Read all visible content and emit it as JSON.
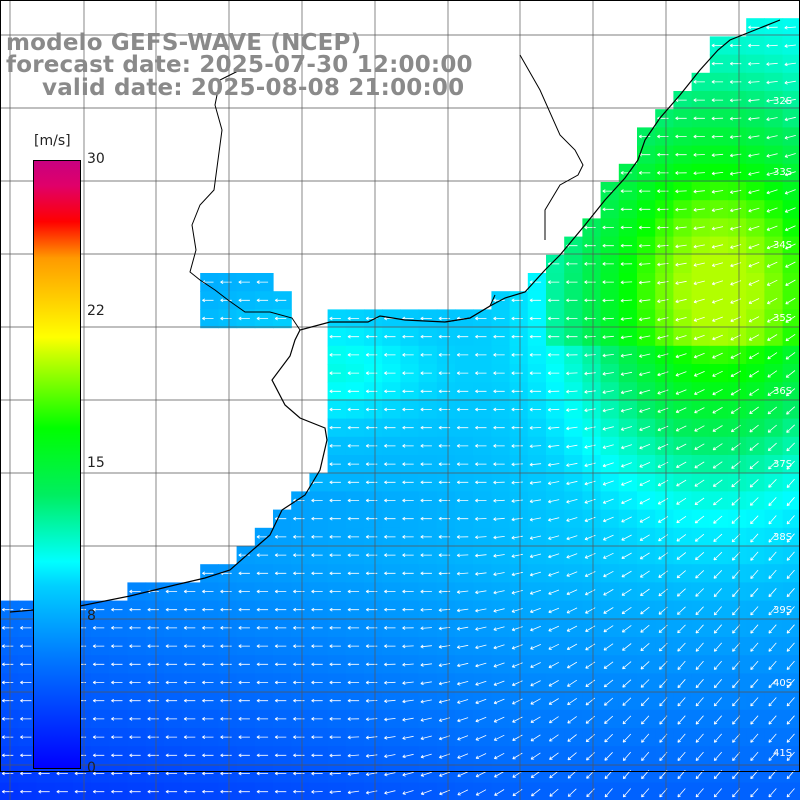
{
  "header": {
    "line1": "modelo GEFS-WAVE (NCEP)",
    "line2": "forecast date: 2025-07-30 12:00:00",
    "line3": "valid date: 2025-08-08 21:00:00"
  },
  "colorbar": {
    "unit": "[m/s]",
    "ticks": [
      {
        "label": "30",
        "value": 30
      },
      {
        "label": "22",
        "value": 22
      },
      {
        "label": "15",
        "value": 15
      },
      {
        "label": "8",
        "value": 8
      },
      {
        "label": "0",
        "value": 0
      }
    ],
    "range": [
      0,
      30
    ]
  },
  "map": {
    "latitude_labels": [
      "32S",
      "33S",
      "34S",
      "35S",
      "36S",
      "37S",
      "38S",
      "39S",
      "40S",
      "41S"
    ],
    "variable": "wind speed with direction arrows",
    "land_color": "#ffffff",
    "grid_color": "#555555",
    "coast_color": "#000000"
  }
}
